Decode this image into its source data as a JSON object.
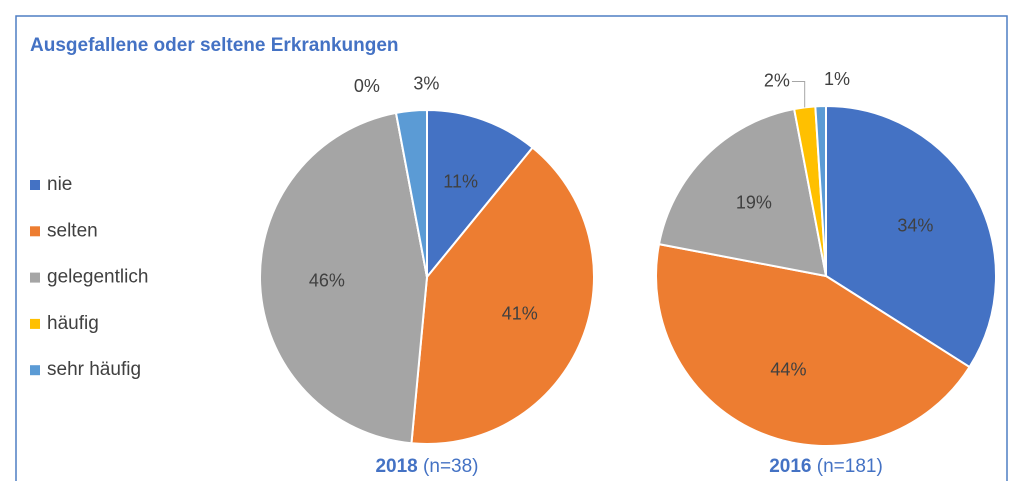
{
  "title": "Ausgefallene oder seltene Erkrankungen",
  "chart_data": [
    {
      "type": "pie",
      "title": "2018",
      "subtitle": "(n=38)",
      "categories": [
        "nie",
        "selten",
        "gelegentlich",
        "häufig",
        "sehr häufig"
      ],
      "values": [
        11,
        41,
        46,
        0,
        3
      ],
      "value_labels": [
        "11%",
        "41%",
        "46%",
        "0%",
        "3%"
      ],
      "colors": [
        "#4472c4",
        "#ed7d31",
        "#a5a5a5",
        "#ffc000",
        "#5b9bd5"
      ],
      "legend": "left"
    },
    {
      "type": "pie",
      "title": "2016",
      "subtitle": "(n=181)",
      "categories": [
        "nie",
        "selten",
        "gelegentlich",
        "häufig",
        "sehr häufig"
      ],
      "values": [
        34,
        44,
        19,
        2,
        1
      ],
      "value_labels": [
        "34%",
        "44%",
        "19%",
        "2%",
        "1%"
      ],
      "colors": [
        "#4472c4",
        "#ed7d31",
        "#a5a5a5",
        "#ffc000",
        "#5b9bd5"
      ]
    }
  ]
}
